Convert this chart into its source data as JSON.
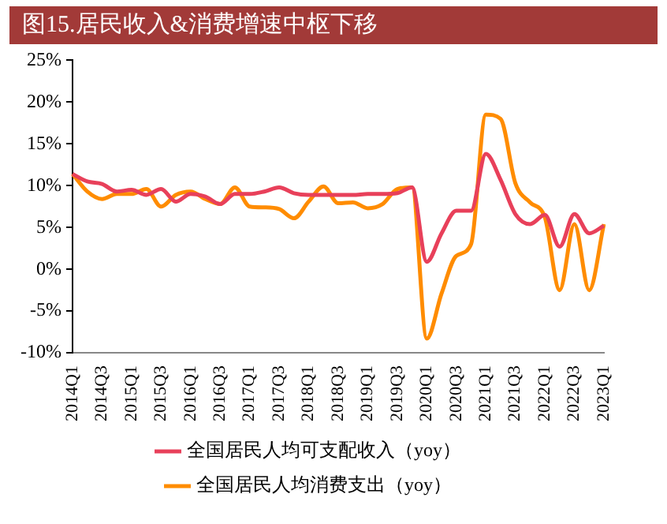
{
  "chart_data": {
    "type": "line",
    "title": "图15.居民收入&消费增速中枢下移",
    "categories": [
      "2014Q1",
      null,
      "2014Q3",
      null,
      "2015Q1",
      null,
      "2015Q3",
      null,
      "2016Q1",
      null,
      "2016Q3",
      null,
      "2017Q1",
      null,
      "2017Q3",
      null,
      "2018Q1",
      null,
      "2018Q3",
      null,
      "2019Q1",
      null,
      "2019Q3",
      null,
      "2020Q1",
      null,
      "2020Q3",
      null,
      "2021Q1",
      null,
      "2021Q3",
      null,
      "2022Q1",
      null,
      "2022Q3",
      null,
      "2023Q1"
    ],
    "series": [
      {
        "name": "全国居民人均可支配收入（yoy）",
        "color": "#e8405a",
        "values": [
          11.4,
          10.5,
          10.2,
          9.3,
          9.5,
          8.9,
          9.6,
          8.1,
          9.0,
          8.7,
          7.8,
          9.0,
          9.0,
          9.3,
          9.8,
          9.1,
          8.9,
          8.9,
          8.9,
          8.9,
          9.0,
          9.0,
          9.1,
          9.8,
          0.9,
          4.3,
          7.0,
          7.0,
          13.8,
          10.7,
          6.6,
          5.4,
          6.5,
          2.7,
          6.6,
          4.3,
          5.2
        ]
      },
      {
        "name": "全国居民人均消费支出（yoy）",
        "color": "#ff8c00",
        "values": [
          11.4,
          9.3,
          8.4,
          9.0,
          9.0,
          9.6,
          7.5,
          8.9,
          9.3,
          8.4,
          7.8,
          9.8,
          7.5,
          7.4,
          7.2,
          6.1,
          8.1,
          9.9,
          7.9,
          8.0,
          7.3,
          7.8,
          9.6,
          9.8,
          -8.3,
          -2.9,
          1.6,
          3.0,
          18.5,
          18.0,
          10.3,
          8.0,
          6.2,
          -2.5,
          5.4,
          -2.5,
          5.4
        ]
      }
    ],
    "ylim": [
      -10,
      25
    ],
    "yticks": [
      {
        "value": -10,
        "label": "-10%"
      },
      {
        "value": -5,
        "label": "-5%"
      },
      {
        "value": 0,
        "label": "0%"
      },
      {
        "value": 5,
        "label": "5%"
      },
      {
        "value": 10,
        "label": "10%"
      },
      {
        "value": 15,
        "label": "15%"
      },
      {
        "value": 20,
        "label": "20%"
      },
      {
        "value": 25,
        "label": "25%"
      }
    ],
    "grid": false,
    "legend": "bottom",
    "marker": "none",
    "line_style": "solid"
  }
}
